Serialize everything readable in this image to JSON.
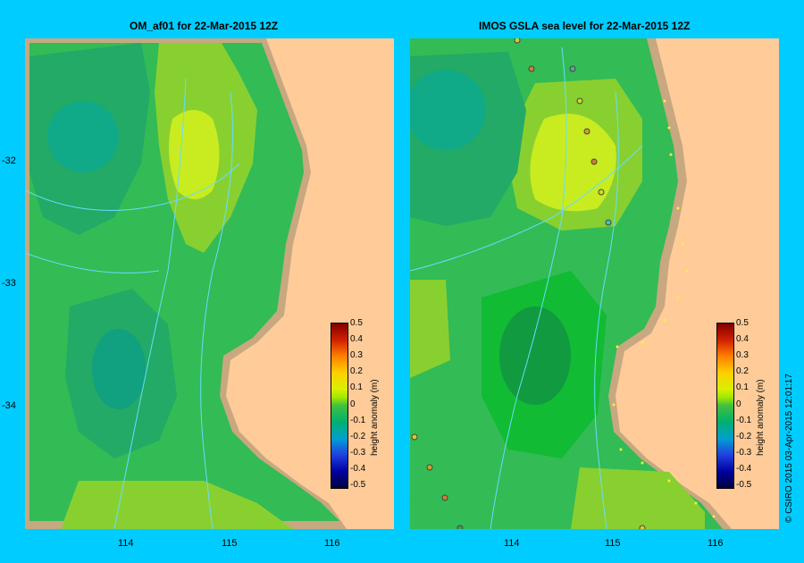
{
  "panels": [
    {
      "title": "OM_af01  for 22-Mar-2015 12Z"
    },
    {
      "title": "IMOS  GSLA sea level  for 22-Mar-2015 12Z"
    }
  ],
  "lat_ticks": [
    "-32",
    "-33",
    "-34"
  ],
  "lon_ticks": [
    "114",
    "115",
    "116"
  ],
  "colorbar": {
    "title": "height anomaly (m)",
    "labels": [
      "0.5",
      "0.4",
      "0.3",
      "0.2",
      "0.1",
      "0",
      "-0.1",
      "-0.2",
      "-0.3",
      "-0.4",
      "-0.5"
    ]
  },
  "credit": "© CSIRO 2015   03-Apr-2015 12:01:17",
  "colors": {
    "background": "#00ccff",
    "land": "#ffcc99",
    "ocean_mid": "#33bb55",
    "anomaly_high": "#ddf020",
    "anomaly_low": "#22aa66"
  }
}
